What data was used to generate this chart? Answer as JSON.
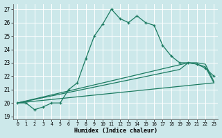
{
  "xlabel": "Humidex (Indice chaleur)",
  "bg_color": "#cce8ea",
  "grid_color": "#ffffff",
  "line_color": "#1a7a60",
  "x_min": 0,
  "x_max": 23,
  "y_min": 19,
  "y_max": 27,
  "x_ticks": [
    0,
    1,
    2,
    3,
    4,
    5,
    6,
    7,
    8,
    9,
    10,
    11,
    12,
    13,
    14,
    15,
    16,
    17,
    18,
    19,
    20,
    21,
    22,
    23
  ],
  "y_ticks": [
    19,
    20,
    21,
    22,
    23,
    24,
    25,
    26,
    27
  ],
  "line1_x": [
    0,
    1,
    2,
    3,
    4,
    5,
    6,
    7,
    8,
    9,
    10,
    11,
    12,
    13,
    14,
    15,
    16,
    17,
    18,
    19,
    20,
    21,
    22,
    23
  ],
  "line1_y": [
    20.0,
    20.0,
    19.5,
    19.7,
    20.0,
    20.0,
    21.0,
    21.5,
    23.3,
    25.0,
    25.9,
    27.0,
    26.3,
    26.0,
    26.5,
    26.0,
    25.8,
    24.3,
    23.5,
    23.0,
    23.0,
    22.9,
    22.6,
    22.0
  ],
  "line2_x": [
    0,
    23
  ],
  "line2_y": [
    20.0,
    21.5
  ],
  "line3_x": [
    0,
    20,
    21,
    22,
    23
  ],
  "line3_y": [
    20.0,
    23.0,
    23.0,
    22.9,
    21.6
  ],
  "line4_x": [
    0,
    19,
    20,
    21,
    22,
    23
  ],
  "line4_y": [
    20.0,
    22.5,
    23.0,
    22.9,
    22.7,
    21.5
  ]
}
